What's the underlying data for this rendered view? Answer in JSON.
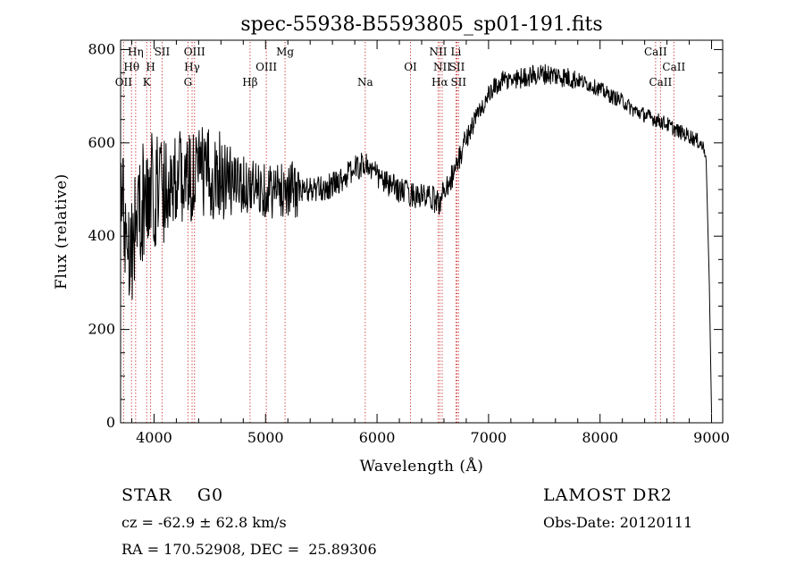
{
  "chart_data": {
    "type": "line",
    "title": "spec-55938-B5593805_sp01-191.fits",
    "xlabel": "Wavelength (Å)",
    "ylabel": "Flux (relative)",
    "xlim": [
      3700,
      9100
    ],
    "ylim": [
      0,
      820
    ],
    "x_ticks": [
      4000,
      5000,
      6000,
      7000,
      8000,
      9000
    ],
    "y_ticks": [
      0,
      200,
      400,
      600,
      800
    ],
    "x_tick_labels": [
      "4000",
      "5000",
      "6000",
      "7000",
      "8000",
      "9000"
    ],
    "y_tick_labels": [
      "0",
      "200",
      "400",
      "600",
      "800"
    ],
    "series": [
      {
        "name": "flux",
        "x": [
          3700,
          3750,
          3800,
          3850,
          3900,
          3950,
          4000,
          4050,
          4100,
          4200,
          4300,
          4400,
          4500,
          4600,
          4700,
          4800,
          4900,
          5000,
          5100,
          5200,
          5300,
          5400,
          5500,
          5600,
          5700,
          5800,
          5900,
          6000,
          6100,
          6200,
          6300,
          6400,
          6500,
          6560,
          6600,
          6700,
          6800,
          6900,
          7000,
          7100,
          7200,
          7300,
          7400,
          7500,
          7600,
          7700,
          7800,
          7900,
          8000,
          8100,
          8200,
          8300,
          8400,
          8500,
          8600,
          8700,
          8800,
          8900,
          8950,
          8980,
          9000
        ],
        "y": [
          500,
          420,
          380,
          450,
          470,
          480,
          500,
          520,
          510,
          530,
          520,
          540,
          530,
          540,
          520,
          510,
          505,
          500,
          495,
          505,
          495,
          500,
          500,
          510,
          525,
          545,
          555,
          530,
          510,
          500,
          490,
          485,
          480,
          470,
          500,
          540,
          610,
          660,
          700,
          730,
          735,
          740,
          745,
          748,
          745,
          740,
          735,
          725,
          715,
          700,
          690,
          670,
          660,
          650,
          640,
          625,
          615,
          600,
          580,
          300,
          20
        ]
      }
    ],
    "line_ids": [
      {
        "name": "OII",
        "x": 3727,
        "row": 3
      },
      {
        "name": "Hθ",
        "x": 3798,
        "row": 2
      },
      {
        "name": "Hη",
        "x": 3835,
        "row": 1
      },
      {
        "name": "K",
        "x": 3934,
        "row": 3
      },
      {
        "name": "H",
        "x": 3969,
        "row": 2
      },
      {
        "name": "SII",
        "x": 4072,
        "row": 1
      },
      {
        "name": "G",
        "x": 4304,
        "row": 3
      },
      {
        "name": "Hγ",
        "x": 4341,
        "row": 2
      },
      {
        "name": "OIII",
        "x": 4363,
        "row": 1
      },
      {
        "name": "Hβ",
        "x": 4861,
        "row": 3
      },
      {
        "name": "OIII",
        "x": 5007,
        "row": 2
      },
      {
        "name": "Mg",
        "x": 5175,
        "row": 1
      },
      {
        "name": "Na",
        "x": 5894,
        "row": 3
      },
      {
        "name": "OI",
        "x": 6300,
        "row": 2
      },
      {
        "name": "NII",
        "x": 6548,
        "row": 1
      },
      {
        "name": "Hα",
        "x": 6563,
        "row": 3
      },
      {
        "name": "NII",
        "x": 6584,
        "row": 2
      },
      {
        "name": "Li",
        "x": 6708,
        "row": 1
      },
      {
        "name": "SII",
        "x": 6717,
        "row": 2
      },
      {
        "name": "SII",
        "x": 6731,
        "row": 3
      },
      {
        "name": "CaII",
        "x": 8498,
        "row": 1
      },
      {
        "name": "CaII",
        "x": 8542,
        "row": 3
      },
      {
        "name": "CaII",
        "x": 8662,
        "row": 2
      }
    ]
  },
  "info": {
    "class_text": "STAR    G0",
    "survey": "LAMOST DR2",
    "cz": "cz = -62.9 ± 62.8 km/s",
    "obs_date": "Obs-Date: 20120111",
    "coords": "RA = 170.52908, DEC =  25.89306"
  }
}
